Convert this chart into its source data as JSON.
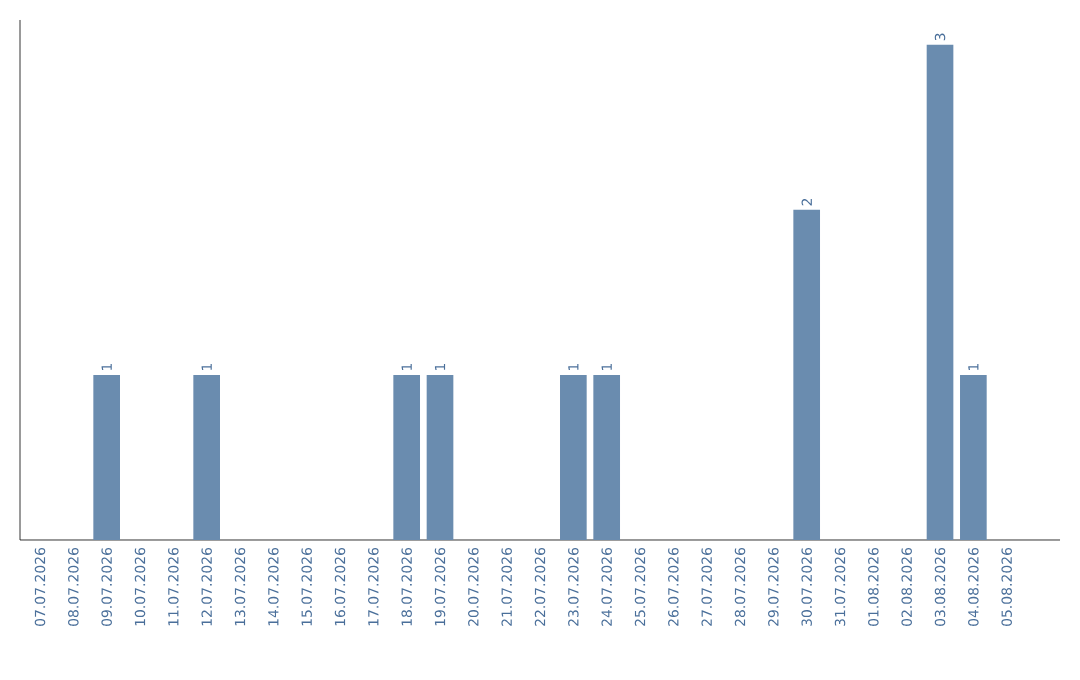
{
  "chart_data": {
    "type": "bar",
    "categories": [
      "07.07.2026",
      "08.07.2026",
      "09.07.2026",
      "10.07.2026",
      "11.07.2026",
      "12.07.2026",
      "13.07.2026",
      "14.07.2026",
      "15.07.2026",
      "16.07.2026",
      "17.07.2026",
      "18.07.2026",
      "19.07.2026",
      "20.07.2026",
      "21.07.2026",
      "22.07.2026",
      "23.07.2026",
      "24.07.2026",
      "25.07.2026",
      "26.07.2026",
      "27.07.2026",
      "28.07.2026",
      "29.07.2026",
      "30.07.2026",
      "31.07.2026",
      "01.08.2026",
      "02.08.2026",
      "03.08.2026",
      "04.08.2026",
      "05.08.2026"
    ],
    "values": [
      0,
      0,
      1,
      0,
      0,
      1,
      0,
      0,
      0,
      0,
      0,
      1,
      1,
      0,
      0,
      0,
      1,
      1,
      0,
      0,
      0,
      0,
      0,
      2,
      0,
      0,
      0,
      3,
      1,
      0
    ],
    "value_labels": [
      null,
      null,
      "1",
      null,
      null,
      "1",
      null,
      null,
      null,
      null,
      null,
      "1",
      "1",
      null,
      null,
      null,
      "1",
      "1",
      null,
      null,
      null,
      null,
      null,
      "2",
      null,
      null,
      null,
      "3",
      "1",
      null
    ],
    "color": "#6a8caf"
  }
}
